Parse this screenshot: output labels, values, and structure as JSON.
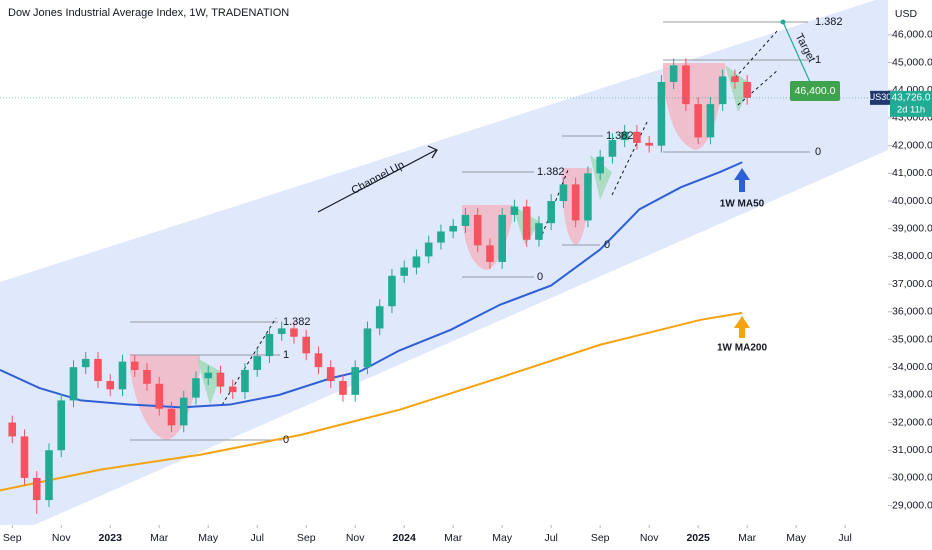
{
  "chart_data": {
    "type": "candlestick",
    "title": "Dow Jones Industrial Average Index, 1W, TRADENATION",
    "currency": "USD",
    "up_color": "#22ab94",
    "down_color": "#f7525f",
    "grid": false,
    "xlim": [
      -0.5,
      35.75
    ],
    "xticks": [
      {
        "value": 0,
        "label": "Sep"
      },
      {
        "value": 2,
        "label": "Nov"
      },
      {
        "value": 4,
        "label": "2023"
      },
      {
        "value": 6,
        "label": "Mar"
      },
      {
        "value": 8,
        "label": "May"
      },
      {
        "value": 10,
        "label": "Jul"
      },
      {
        "value": 12,
        "label": "Sep"
      },
      {
        "value": 14,
        "label": "Nov"
      },
      {
        "value": 16,
        "label": "2024"
      },
      {
        "value": 18,
        "label": "Mar"
      },
      {
        "value": 20,
        "label": "May"
      },
      {
        "value": 22,
        "label": "Jul"
      },
      {
        "value": 24,
        "label": "Sep"
      },
      {
        "value": 26,
        "label": "Nov"
      },
      {
        "value": 28,
        "label": "2025"
      },
      {
        "value": 30,
        "label": "Mar"
      },
      {
        "value": 32,
        "label": "May"
      },
      {
        "value": 34,
        "label": "Jul"
      }
    ],
    "ylim": [
      28300,
      47260
    ],
    "yticks": [
      {
        "value": 29000,
        "label": "29,000.0"
      },
      {
        "value": 30000,
        "label": "30,000.0"
      },
      {
        "value": 31000,
        "label": "31,000.0"
      },
      {
        "value": 32000,
        "label": "32,000.0"
      },
      {
        "value": 33000,
        "label": "33,000.0"
      },
      {
        "value": 34000,
        "label": "34,000.0"
      },
      {
        "value": 35000,
        "label": "35,000.0"
      },
      {
        "value": 36000,
        "label": "36,000.0"
      },
      {
        "value": 37000,
        "label": "37,000.0"
      },
      {
        "value": 38000,
        "label": "38,000.0"
      },
      {
        "value": 39000,
        "label": "39,000.0"
      },
      {
        "value": 40000,
        "label": "40,000.0"
      },
      {
        "value": 41000,
        "label": "41,000.0"
      },
      {
        "value": 42000,
        "label": "42,000.0"
      },
      {
        "value": 43000,
        "label": "43,000.0"
      },
      {
        "value": 44000,
        "label": "44,000.0"
      },
      {
        "value": 45000,
        "label": "45,000.0"
      },
      {
        "value": 46000,
        "label": "46,000.0"
      }
    ],
    "x": [
      0,
      0.5,
      1,
      1.5,
      2,
      2.5,
      3,
      3.5,
      4,
      4.5,
      5,
      5.5,
      6,
      6.5,
      7,
      7.5,
      8,
      8.5,
      9,
      9.5,
      10,
      10.5,
      11,
      11.5,
      12,
      12.5,
      13,
      13.5,
      14,
      14.5,
      15,
      15.5,
      16,
      16.5,
      17,
      17.5,
      18,
      18.5,
      19,
      19.5,
      20,
      20.5,
      21,
      21.5,
      22,
      22.5,
      23,
      23.5,
      24,
      24.5,
      25,
      25.5,
      26,
      26.5,
      27,
      27.5,
      28,
      28.5,
      29,
      29.5,
      30
    ],
    "open": [
      32000,
      31500,
      30000,
      29200,
      31000,
      32800,
      34000,
      34300,
      33500,
      33200,
      34200,
      33900,
      33400,
      32500,
      31900,
      32900,
      33600,
      33800,
      33300,
      33100,
      33900,
      34400,
      35200,
      35400,
      35100,
      34500,
      34000,
      33500,
      33000,
      34000,
      35400,
      36200,
      37300,
      37600,
      38000,
      38500,
      38900,
      39100,
      39500,
      38400,
      37800,
      39500,
      39800,
      38600,
      39200,
      40000,
      40600,
      39300,
      41000,
      41600,
      42200,
      42500,
      42100,
      42000,
      44300,
      44900,
      43500,
      42300,
      43500,
      44500,
      44300
    ],
    "high": [
      32250,
      31750,
      30250,
      31250,
      33050,
      34250,
      34550,
      34550,
      33750,
      34450,
      34450,
      34150,
      33650,
      32750,
      33150,
      33850,
      34050,
      34050,
      33550,
      34150,
      34650,
      35450,
      35650,
      35650,
      35350,
      34750,
      34250,
      33750,
      34250,
      35650,
      36450,
      37550,
      37850,
      38250,
      38750,
      39150,
      39350,
      39750,
      39750,
      38650,
      39750,
      40050,
      40050,
      39450,
      40250,
      40850,
      40850,
      41250,
      41850,
      42450,
      42750,
      42750,
      42350,
      44550,
      45150,
      45150,
      43750,
      43750,
      44750,
      44750,
      44550
    ],
    "low": [
      31250,
      29750,
      28700,
      28950,
      30750,
      32550,
      33750,
      33250,
      32950,
      32950,
      33650,
      33150,
      32250,
      31650,
      31650,
      32650,
      33350,
      33050,
      32850,
      32850,
      33650,
      34150,
      34950,
      34850,
      34250,
      33750,
      33250,
      32750,
      32750,
      33750,
      35150,
      35950,
      37050,
      37350,
      37750,
      38250,
      38650,
      38850,
      38150,
      37550,
      37550,
      39250,
      38350,
      38350,
      38950,
      39750,
      39050,
      39050,
      40750,
      41350,
      41950,
      41850,
      41750,
      41750,
      44050,
      43250,
      42050,
      42050,
      43250,
      44050,
      43476
    ],
    "close": [
      31500,
      30000,
      29200,
      31000,
      32800,
      34000,
      34300,
      33500,
      33200,
      34200,
      33900,
      33400,
      32500,
      31900,
      32900,
      33600,
      33800,
      33300,
      33100,
      33900,
      34400,
      35200,
      35400,
      35100,
      34500,
      34000,
      33500,
      33000,
      34000,
      35400,
      36200,
      37300,
      37600,
      38000,
      38500,
      38900,
      39100,
      39500,
      38400,
      37800,
      39500,
      39800,
      38600,
      39200,
      40000,
      40600,
      39300,
      41000,
      41600,
      42200,
      42500,
      42100,
      42000,
      44300,
      44900,
      43500,
      42300,
      43500,
      44500,
      44300,
      43726
    ],
    "ma_lines": [
      {
        "label": "1W MA50",
        "color": "#2f5fd6",
        "x": [
          -0.5,
          1.1,
          2.8,
          4.8,
          6.9,
          8.9,
          10.9,
          13,
          14.2,
          15.8,
          17.9,
          19.9,
          22,
          24,
          25.6,
          27.3,
          28.9,
          29.8
        ],
        "values": [
          33900,
          33250,
          32800,
          32650,
          32550,
          32650,
          33000,
          33600,
          33850,
          34600,
          35350,
          36250,
          36950,
          38250,
          39700,
          40500,
          41050,
          41400
        ]
      },
      {
        "label": "1W MA200",
        "color": "#f5a30f",
        "x": [
          -0.5,
          3.6,
          7.7,
          11.8,
          15.8,
          19.9,
          24,
          28.1,
          29.8
        ],
        "values": [
          29550,
          30300,
          30840,
          31560,
          32460,
          33620,
          34810,
          35710,
          35960
        ]
      }
    ],
    "last_price": {
      "symbol": "US30",
      "label": "43,726.0",
      "countdown": "2d 11h"
    },
    "annotations": {
      "channel": "Channel Up",
      "target": "Target",
      "target_price": "46,400.0",
      "fib_2023": [
        "1.382",
        "1",
        "0"
      ],
      "fib_2024a": [
        "1.382",
        "0"
      ],
      "fib_2024b": [
        "1.382",
        "0"
      ],
      "fib_2025": [
        "1.382",
        "1",
        "0"
      ]
    }
  }
}
